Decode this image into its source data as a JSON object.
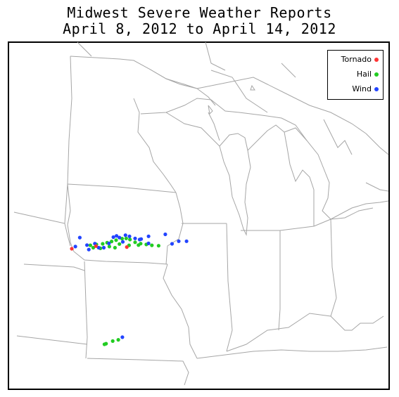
{
  "title": {
    "line1": "Midwest Severe Weather Reports",
    "line2": "April 8, 2012 to April 14, 2012"
  },
  "legend": {
    "items": [
      {
        "label": "Tornado",
        "color": "#ff3333"
      },
      {
        "label": "Hail",
        "color": "#22cc22"
      },
      {
        "label": "Wind",
        "color": "#2244ff"
      }
    ]
  },
  "chart_data": {
    "type": "scatter",
    "series": [
      {
        "name": "Tornado",
        "color": "#ff3333",
        "points": [
          [
            -96.38,
            42.5
          ],
          [
            -93.92,
            42.58
          ],
          [
            -95.3,
            42.62
          ]
        ]
      },
      {
        "name": "Hail",
        "color": "#22cc22",
        "points": [
          [
            -95.55,
            42.66
          ],
          [
            -95.28,
            42.7
          ],
          [
            -95.0,
            42.73
          ],
          [
            -94.8,
            42.78
          ],
          [
            -94.6,
            42.84
          ],
          [
            -94.4,
            42.9
          ],
          [
            -94.13,
            42.97
          ],
          [
            -93.95,
            42.98
          ],
          [
            -93.78,
            42.93
          ],
          [
            -93.55,
            42.8
          ],
          [
            -93.3,
            42.74
          ],
          [
            -93.05,
            42.7
          ],
          [
            -92.8,
            42.66
          ],
          [
            -92.5,
            42.64
          ],
          [
            -94.7,
            42.6
          ],
          [
            -94.45,
            42.55
          ],
          [
            -94.25,
            42.72
          ],
          [
            -93.82,
            42.66
          ],
          [
            -95.1,
            42.52
          ],
          [
            -93.4,
            42.67
          ],
          [
            -94.92,
            38.05
          ],
          [
            -94.55,
            38.2
          ],
          [
            -94.3,
            38.26
          ],
          [
            -94.85,
            38.08
          ],
          [
            -95.42,
            42.55
          ]
        ]
      },
      {
        "name": "Wind",
        "color": "#2244ff",
        "points": [
          [
            -96.22,
            42.6
          ],
          [
            -96.02,
            43.02
          ],
          [
            -95.7,
            42.67
          ],
          [
            -95.35,
            42.74
          ],
          [
            -95.18,
            42.55
          ],
          [
            -94.95,
            42.55
          ],
          [
            -94.72,
            42.75
          ],
          [
            -94.52,
            43.04
          ],
          [
            -94.38,
            43.1
          ],
          [
            -94.25,
            43.02
          ],
          [
            -93.98,
            43.13
          ],
          [
            -93.8,
            43.08
          ],
          [
            -93.55,
            42.98
          ],
          [
            -93.28,
            42.95
          ],
          [
            -92.95,
            43.08
          ],
          [
            -92.2,
            43.17
          ],
          [
            -91.6,
            42.85
          ],
          [
            -91.9,
            42.73
          ],
          [
            -91.25,
            42.85
          ],
          [
            -92.95,
            42.75
          ],
          [
            -94.1,
            42.82
          ],
          [
            -95.62,
            42.46
          ],
          [
            -94.12,
            38.38
          ],
          [
            -93.35,
            42.93
          ]
        ]
      }
    ],
    "xlim": [
      -98.0,
      -81.5
    ],
    "ylim": [
      37.3,
      48.5
    ]
  }
}
